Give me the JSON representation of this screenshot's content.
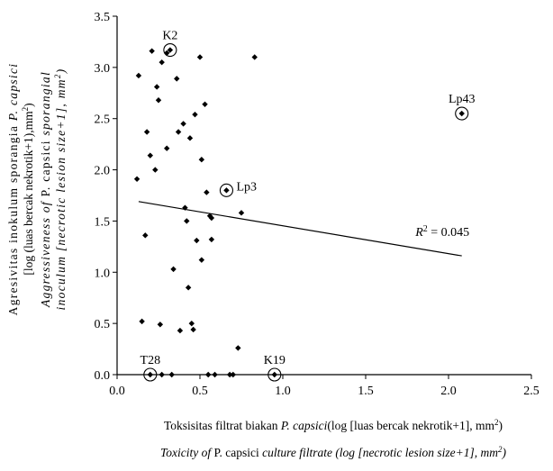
{
  "chart_data": {
    "type": "scatter",
    "xlim": [
      0,
      2.5
    ],
    "ylim": [
      0,
      3.5
    ],
    "xticks": [
      "0.0",
      "0.5",
      "1.0",
      "1.5",
      "2.0",
      "2.5"
    ],
    "yticks": [
      "0.0",
      "0.5",
      "1.0",
      "1.5",
      "2.0",
      "2.5",
      "3.0",
      "3.5"
    ],
    "xlabel_line1": {
      "pre": "Toksisitas filtrat biakan ",
      "italic": "P. capsici",
      "post": "(log [luas bercak nekrotik+1], mm",
      "sup": "2",
      "end": ")"
    },
    "xlabel_line2": {
      "pre": "Toxicity of ",
      "roman": "P. capsici",
      "post": " culture filtrate (log [necrotic lesion size+1], mm",
      "sup": "2",
      "end": ")"
    },
    "ylabel_line1": {
      "pre": "Agresivitas inokulum sporangia ",
      "italic": "P. capsici"
    },
    "ylabel_line2": {
      "pre": "[log (luas bercak nekrotik+1),mm",
      "sup": "2",
      "end": ")"
    },
    "ylabel_line3": {
      "pre": "Aggressiveness of ",
      "roman": "P. capsici",
      "post": " sporangial"
    },
    "ylabel_line4": {
      "pre": "inoculum [necrotic lesion size+1], mm",
      "sup": "2",
      "end": ")"
    },
    "r2_annotation": {
      "label": "R",
      "sup": "2",
      "value": " = 0.045",
      "x": 1.8,
      "y": 1.4
    },
    "trendline": {
      "x": [
        0.13,
        2.08
      ],
      "y": [
        1.69,
        1.16
      ]
    },
    "points": [
      {
        "x": 0.12,
        "y": 1.91
      },
      {
        "x": 0.13,
        "y": 2.92
      },
      {
        "x": 0.15,
        "y": 0.52
      },
      {
        "x": 0.17,
        "y": 1.36
      },
      {
        "x": 0.18,
        "y": 2.37
      },
      {
        "x": 0.2,
        "y": 2.14
      },
      {
        "x": 0.21,
        "y": 3.16
      },
      {
        "x": 0.23,
        "y": 2.0
      },
      {
        "x": 0.24,
        "y": 2.81
      },
      {
        "x": 0.26,
        "y": 0.49
      },
      {
        "x": 0.27,
        "y": 3.05
      },
      {
        "x": 0.3,
        "y": 3.14
      },
      {
        "x": 0.3,
        "y": 2.21
      },
      {
        "x": 0.34,
        "y": 1.03
      },
      {
        "x": 0.36,
        "y": 2.89
      },
      {
        "x": 0.37,
        "y": 2.37
      },
      {
        "x": 0.38,
        "y": 0.43
      },
      {
        "x": 0.4,
        "y": 2.45
      },
      {
        "x": 0.41,
        "y": 1.63
      },
      {
        "x": 0.42,
        "y": 1.5
      },
      {
        "x": 0.43,
        "y": 0.85
      },
      {
        "x": 0.44,
        "y": 2.31
      },
      {
        "x": 0.45,
        "y": 0.5
      },
      {
        "x": 0.46,
        "y": 0.44
      },
      {
        "x": 0.47,
        "y": 2.54
      },
      {
        "x": 0.48,
        "y": 1.31
      },
      {
        "x": 0.5,
        "y": 3.1
      },
      {
        "x": 0.51,
        "y": 1.12
      },
      {
        "x": 0.51,
        "y": 2.1
      },
      {
        "x": 0.53,
        "y": 2.64
      },
      {
        "x": 0.54,
        "y": 1.78
      },
      {
        "x": 0.56,
        "y": 1.55
      },
      {
        "x": 0.57,
        "y": 1.32
      },
      {
        "x": 0.57,
        "y": 1.53
      },
      {
        "x": 0.73,
        "y": 0.26
      },
      {
        "x": 0.75,
        "y": 1.58
      },
      {
        "x": 0.83,
        "y": 3.1
      },
      {
        "x": 0.25,
        "y": 2.68
      },
      {
        "x": 0.27,
        "y": 0.0
      },
      {
        "x": 0.33,
        "y": 0.0
      },
      {
        "x": 0.55,
        "y": 0.0
      },
      {
        "x": 0.59,
        "y": 0.0
      },
      {
        "x": 0.68,
        "y": 0.0
      },
      {
        "x": 0.7,
        "y": 0.0
      }
    ],
    "circled_points": [
      {
        "label": "K2",
        "x": 0.32,
        "y": 3.17,
        "label_pos": "above"
      },
      {
        "label": "Lp3",
        "x": 0.66,
        "y": 1.8,
        "label_pos": "right"
      },
      {
        "label": "Lp43",
        "x": 2.08,
        "y": 2.55,
        "label_pos": "above"
      },
      {
        "label": "T28",
        "x": 0.2,
        "y": 0.0,
        "label_pos": "above"
      },
      {
        "label": "K19",
        "x": 0.95,
        "y": 0.0,
        "label_pos": "above"
      }
    ]
  }
}
